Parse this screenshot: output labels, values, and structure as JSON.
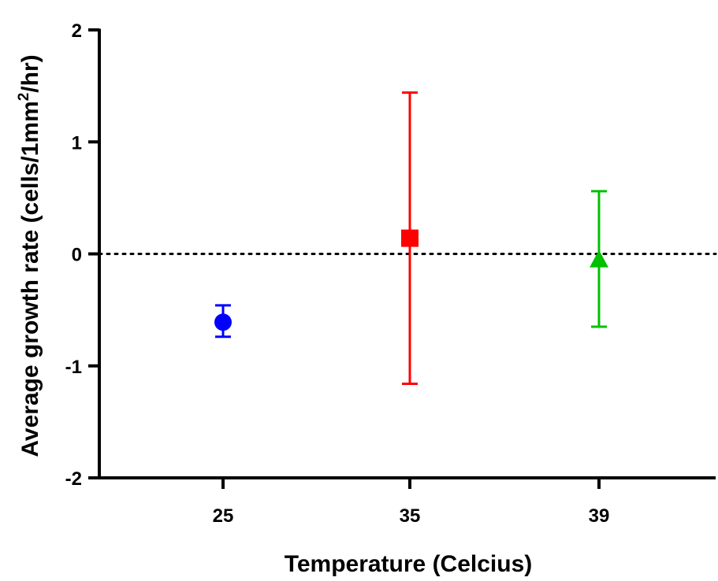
{
  "chart_data": {
    "type": "scatter",
    "title": "",
    "xlabel": "Temperature (Celcius)",
    "ylabel_main": "Average growth rate (cells/1mm",
    "ylabel_sup": "2",
    "ylabel_end": "/hr)",
    "ylim": [
      -2,
      2
    ],
    "yticks": [
      "2",
      "1",
      "0",
      "-1",
      "-2"
    ],
    "categories": [
      "25",
      "35",
      "39"
    ],
    "reference_line": {
      "y": 0,
      "style": "dotted"
    },
    "grid": false,
    "legend": "none",
    "series": [
      {
        "category": "25",
        "value": -0.61,
        "error_low": -0.74,
        "error_high": -0.46,
        "marker": "circle",
        "color": "#0000ff"
      },
      {
        "category": "35",
        "value": 0.14,
        "error_low": -1.16,
        "error_high": 1.44,
        "marker": "square",
        "color": "#ff0000"
      },
      {
        "category": "39",
        "value": -0.05,
        "error_low": -0.65,
        "error_high": 0.56,
        "marker": "triangle",
        "color": "#00c000"
      }
    ]
  }
}
